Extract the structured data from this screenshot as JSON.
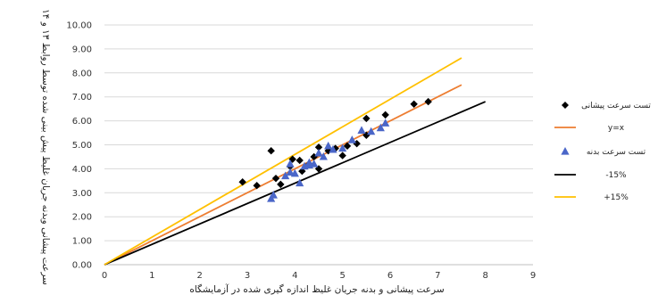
{
  "chart_data": {
    "type": "scatter",
    "title": "",
    "xlabel": "سرعت پیشانی و بدنه جریان غلیظ اندازه گیری شده در آزمایشگاه",
    "ylabel": "سرعت پیشانی وبدنه جریان غلیظ پیش بینی شده توسط روابط ۱۳ و ۱۴",
    "xlim": [
      0,
      9
    ],
    "ylim": [
      0,
      10
    ],
    "x_ticks": [
      "0",
      "1",
      "2",
      "3",
      "4",
      "5",
      "6",
      "7",
      "8",
      "9"
    ],
    "y_ticks": [
      "0.00",
      "1.00",
      "2.00",
      "3.00",
      "4.00",
      "5.00",
      "6.00",
      "7.00",
      "8.00",
      "9.00",
      "10.00"
    ],
    "grid": "horizontal",
    "legend_position": "right",
    "series": [
      {
        "name": "تست سرعت پیشانی",
        "kind": "points",
        "marker": "diamond",
        "color": "#000000",
        "points": [
          [
            2.9,
            3.45
          ],
          [
            3.2,
            3.3
          ],
          [
            3.5,
            4.75
          ],
          [
            3.6,
            3.6
          ],
          [
            3.7,
            3.35
          ],
          [
            3.9,
            4.1
          ],
          [
            3.95,
            4.4
          ],
          [
            4.1,
            4.35
          ],
          [
            4.15,
            3.9
          ],
          [
            4.3,
            4.2
          ],
          [
            4.4,
            4.5
          ],
          [
            4.5,
            4.0
          ],
          [
            4.5,
            4.9
          ],
          [
            4.7,
            4.75
          ],
          [
            4.85,
            4.85
          ],
          [
            5.0,
            4.55
          ],
          [
            5.1,
            4.95
          ],
          [
            5.3,
            5.05
          ],
          [
            5.5,
            5.4
          ],
          [
            5.5,
            6.1
          ],
          [
            5.9,
            6.25
          ],
          [
            6.5,
            6.7
          ],
          [
            6.8,
            6.8
          ]
        ]
      },
      {
        "name": "y=x",
        "kind": "line",
        "color": "#ed7d31",
        "points": [
          [
            0,
            0
          ],
          [
            7.5,
            7.5
          ]
        ]
      },
      {
        "name": "تست سرعت بدنه",
        "kind": "points",
        "marker": "triangle",
        "color": "#4a66c8",
        "points": [
          [
            3.5,
            2.75
          ],
          [
            3.55,
            2.9
          ],
          [
            3.8,
            3.7
          ],
          [
            3.9,
            3.85
          ],
          [
            4.0,
            3.8
          ],
          [
            4.1,
            3.4
          ],
          [
            4.2,
            4.1
          ],
          [
            4.3,
            4.25
          ],
          [
            4.4,
            4.2
          ],
          [
            4.5,
            4.65
          ],
          [
            4.6,
            4.5
          ],
          [
            4.7,
            4.95
          ],
          [
            4.8,
            4.8
          ],
          [
            5.0,
            4.85
          ],
          [
            5.2,
            5.2
          ],
          [
            5.4,
            5.6
          ],
          [
            5.6,
            5.55
          ],
          [
            5.8,
            5.7
          ],
          [
            5.9,
            5.9
          ],
          [
            3.9,
            4.2
          ],
          [
            4.3,
            4.15
          ]
        ]
      },
      {
        "name": "-15%",
        "kind": "line",
        "color": "#000000",
        "points": [
          [
            0,
            0
          ],
          [
            8,
            6.8
          ]
        ]
      },
      {
        "name": "+15%",
        "kind": "line",
        "color": "#ffc000",
        "points": [
          [
            0,
            0
          ],
          [
            7.5,
            8.625
          ]
        ]
      }
    ]
  }
}
